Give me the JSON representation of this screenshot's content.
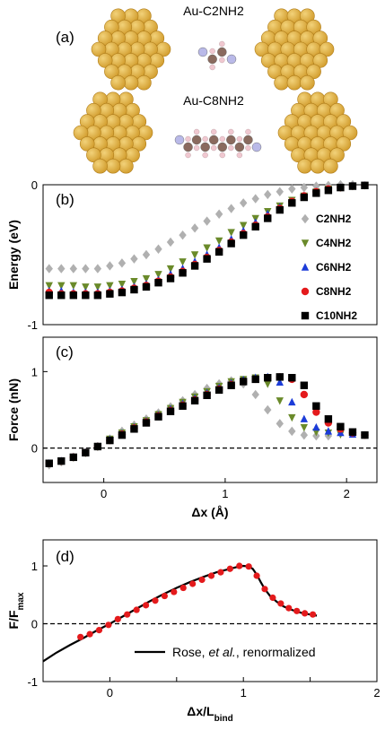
{
  "panel_a": {
    "label": "(a)",
    "molecules": [
      {
        "name": "Au-C2NH2",
        "carbons": 2
      },
      {
        "name": "Au-C8NH2",
        "carbons": 8
      }
    ],
    "colors": {
      "gold": "#d4a032",
      "gold_light": "#f2d27a",
      "carbon": "#8a6a5e",
      "nitrogen": "#b9b9e8",
      "hydrogen": "#f0c8d0",
      "arrow": "#0e8a5a"
    }
  },
  "chart_data": [
    {
      "type": "scatter",
      "panel": "(b)",
      "ylabel": "Energy (eV)",
      "xlim": [
        -0.5,
        2.25
      ],
      "ylim": [
        -1,
        0
      ],
      "yticks": [
        0,
        -1
      ],
      "legend_position": "right",
      "series": [
        {
          "name": "C2NH2",
          "marker": "diamond",
          "color": "#b0b0b0",
          "x": [
            -0.45,
            -0.35,
            -0.25,
            -0.15,
            -0.05,
            0.05,
            0.15,
            0.25,
            0.35,
            0.45,
            0.55,
            0.65,
            0.75,
            0.85,
            0.95,
            1.05,
            1.15,
            1.25,
            1.35,
            1.45,
            1.55,
            1.65,
            1.75,
            1.85,
            1.95,
            2.05
          ],
          "y": [
            -0.6,
            -0.6,
            -0.6,
            -0.6,
            -0.6,
            -0.58,
            -0.56,
            -0.53,
            -0.5,
            -0.46,
            -0.41,
            -0.36,
            -0.31,
            -0.26,
            -0.21,
            -0.17,
            -0.13,
            -0.1,
            -0.07,
            -0.05,
            -0.03,
            -0.02,
            -0.01,
            -0.005,
            0,
            0
          ]
        },
        {
          "name": "C4NH2",
          "marker": "triangle-down",
          "color": "#6a8a2a",
          "x": [
            -0.45,
            -0.35,
            -0.25,
            -0.15,
            -0.05,
            0.05,
            0.15,
            0.25,
            0.35,
            0.45,
            0.55,
            0.65,
            0.75,
            0.85,
            0.95,
            1.05,
            1.15,
            1.25,
            1.35,
            1.45,
            1.55,
            1.65,
            1.75,
            1.85,
            1.95,
            2.05,
            2.15
          ],
          "y": [
            -0.72,
            -0.72,
            -0.72,
            -0.73,
            -0.73,
            -0.72,
            -0.71,
            -0.69,
            -0.67,
            -0.64,
            -0.6,
            -0.55,
            -0.5,
            -0.45,
            -0.4,
            -0.34,
            -0.29,
            -0.24,
            -0.19,
            -0.15,
            -0.11,
            -0.08,
            -0.05,
            -0.03,
            -0.02,
            -0.01,
            -0.005
          ]
        },
        {
          "name": "C6NH2",
          "marker": "triangle-up",
          "color": "#1c3cd8",
          "x": [
            -0.45,
            -0.35,
            -0.25,
            -0.15,
            -0.05,
            0.05,
            0.15,
            0.25,
            0.35,
            0.45,
            0.55,
            0.65,
            0.75,
            0.85,
            0.95,
            1.05,
            1.15,
            1.25,
            1.35,
            1.45,
            1.55,
            1.65,
            1.75,
            1.85,
            1.95,
            2.05,
            2.15
          ],
          "y": [
            -0.76,
            -0.76,
            -0.77,
            -0.77,
            -0.77,
            -0.76,
            -0.75,
            -0.73,
            -0.71,
            -0.68,
            -0.64,
            -0.6,
            -0.55,
            -0.5,
            -0.45,
            -0.39,
            -0.33,
            -0.27,
            -0.21,
            -0.16,
            -0.12,
            -0.08,
            -0.05,
            -0.03,
            -0.02,
            -0.01,
            -0.005
          ]
        },
        {
          "name": "C8NH2",
          "marker": "circle",
          "color": "#e41a1c",
          "x": [
            -0.45,
            -0.35,
            -0.25,
            -0.15,
            -0.05,
            0.05,
            0.15,
            0.25,
            0.35,
            0.45,
            0.55,
            0.65,
            0.75,
            0.85,
            0.95,
            1.05,
            1.15,
            1.25,
            1.35,
            1.45,
            1.55,
            1.65,
            1.75,
            1.85,
            1.95,
            2.05,
            2.15
          ],
          "y": [
            -0.77,
            -0.78,
            -0.78,
            -0.78,
            -0.78,
            -0.77,
            -0.76,
            -0.74,
            -0.72,
            -0.69,
            -0.66,
            -0.62,
            -0.57,
            -0.52,
            -0.47,
            -0.41,
            -0.35,
            -0.29,
            -0.23,
            -0.17,
            -0.12,
            -0.08,
            -0.05,
            -0.03,
            -0.02,
            -0.01,
            -0.005
          ]
        },
        {
          "name": "C10NH2",
          "marker": "square",
          "color": "#000000",
          "x": [
            -0.45,
            -0.35,
            -0.25,
            -0.15,
            -0.05,
            0.05,
            0.15,
            0.25,
            0.35,
            0.45,
            0.55,
            0.65,
            0.75,
            0.85,
            0.95,
            1.05,
            1.15,
            1.25,
            1.35,
            1.45,
            1.55,
            1.65,
            1.75,
            1.85,
            1.95,
            2.05,
            2.15
          ],
          "y": [
            -0.79,
            -0.79,
            -0.79,
            -0.79,
            -0.79,
            -0.78,
            -0.77,
            -0.75,
            -0.73,
            -0.7,
            -0.67,
            -0.63,
            -0.58,
            -0.53,
            -0.48,
            -0.42,
            -0.36,
            -0.3,
            -0.24,
            -0.18,
            -0.13,
            -0.09,
            -0.06,
            -0.04,
            -0.02,
            -0.01,
            -0.005
          ]
        }
      ]
    },
    {
      "type": "scatter",
      "panel": "(c)",
      "ylabel": "Force (nN)",
      "xlabel": "Δx (Å)",
      "xlim": [
        -0.5,
        2.25
      ],
      "ylim": [
        -0.45,
        1.45
      ],
      "xticks": [
        0,
        1,
        2
      ],
      "yticks": [
        0,
        1
      ],
      "reference_line_y": 0,
      "series": [
        {
          "name": "C2NH2",
          "marker": "diamond",
          "color": "#b0b0b0",
          "x": [
            -0.45,
            -0.35,
            -0.25,
            -0.15,
            -0.05,
            0.05,
            0.15,
            0.25,
            0.35,
            0.45,
            0.55,
            0.65,
            0.75,
            0.85,
            0.95,
            1.05,
            1.15,
            1.25,
            1.35,
            1.45,
            1.55,
            1.65,
            1.75,
            1.85
          ],
          "y": [
            -0.22,
            -0.18,
            -0.12,
            -0.06,
            0.02,
            0.12,
            0.22,
            0.3,
            0.38,
            0.46,
            0.54,
            0.62,
            0.7,
            0.78,
            0.84,
            0.88,
            0.84,
            0.7,
            0.5,
            0.32,
            0.22,
            0.17,
            0.16,
            0.16
          ]
        },
        {
          "name": "C4NH2",
          "marker": "triangle-down",
          "color": "#6a8a2a",
          "x": [
            -0.45,
            -0.35,
            -0.25,
            -0.15,
            -0.05,
            0.05,
            0.15,
            0.25,
            0.35,
            0.45,
            0.55,
            0.65,
            0.75,
            0.85,
            0.95,
            1.05,
            1.15,
            1.25,
            1.35,
            1.45,
            1.55,
            1.65,
            1.75,
            1.85,
            1.95
          ],
          "y": [
            -0.2,
            -0.17,
            -0.12,
            -0.06,
            0.02,
            0.12,
            0.2,
            0.28,
            0.36,
            0.44,
            0.52,
            0.6,
            0.67,
            0.74,
            0.81,
            0.87,
            0.9,
            0.92,
            0.84,
            0.62,
            0.4,
            0.27,
            0.21,
            0.2,
            0.18
          ]
        },
        {
          "name": "C6NH2",
          "marker": "triangle-up",
          "color": "#1c3cd8",
          "x": [
            -0.45,
            -0.35,
            -0.25,
            -0.15,
            -0.05,
            0.05,
            0.15,
            0.25,
            0.35,
            0.45,
            0.55,
            0.65,
            0.75,
            0.85,
            0.95,
            1.05,
            1.15,
            1.25,
            1.35,
            1.45,
            1.55,
            1.65,
            1.75,
            1.85,
            1.95,
            2.05
          ],
          "y": [
            -0.2,
            -0.17,
            -0.12,
            -0.06,
            0.02,
            0.11,
            0.19,
            0.27,
            0.35,
            0.43,
            0.51,
            0.58,
            0.65,
            0.72,
            0.79,
            0.85,
            0.89,
            0.92,
            0.93,
            0.86,
            0.6,
            0.38,
            0.27,
            0.22,
            0.2,
            0.18
          ]
        },
        {
          "name": "C8NH2",
          "marker": "circle",
          "color": "#e41a1c",
          "x": [
            -0.45,
            -0.35,
            -0.25,
            -0.15,
            -0.05,
            0.05,
            0.15,
            0.25,
            0.35,
            0.45,
            0.55,
            0.65,
            0.75,
            0.85,
            0.95,
            1.05,
            1.15,
            1.25,
            1.35,
            1.45,
            1.55,
            1.65,
            1.75,
            1.85,
            1.95,
            2.05,
            2.15
          ],
          "y": [
            -0.2,
            -0.17,
            -0.12,
            -0.06,
            0.02,
            0.1,
            0.18,
            0.26,
            0.34,
            0.42,
            0.49,
            0.56,
            0.63,
            0.7,
            0.77,
            0.83,
            0.87,
            0.9,
            0.92,
            0.93,
            0.9,
            0.7,
            0.47,
            0.33,
            0.25,
            0.2,
            0.17
          ]
        },
        {
          "name": "C10NH2",
          "marker": "square",
          "color": "#000000",
          "x": [
            -0.45,
            -0.35,
            -0.25,
            -0.15,
            -0.05,
            0.05,
            0.15,
            0.25,
            0.35,
            0.45,
            0.55,
            0.65,
            0.75,
            0.85,
            0.95,
            1.05,
            1.15,
            1.25,
            1.35,
            1.45,
            1.55,
            1.65,
            1.75,
            1.85,
            1.95,
            2.05,
            2.15
          ],
          "y": [
            -0.2,
            -0.17,
            -0.12,
            -0.06,
            0.02,
            0.1,
            0.17,
            0.25,
            0.33,
            0.41,
            0.48,
            0.55,
            0.62,
            0.69,
            0.76,
            0.82,
            0.87,
            0.9,
            0.92,
            0.93,
            0.92,
            0.82,
            0.55,
            0.38,
            0.28,
            0.21,
            0.17
          ]
        }
      ]
    },
    {
      "type": "line",
      "panel": "(d)",
      "ylabel": "F/F",
      "ylabel_sub": "max",
      "xlabel": "Δx/L",
      "xlabel_sub": "bind",
      "xlim": [
        -0.5,
        2
      ],
      "ylim": [
        -1,
        1.45
      ],
      "xticks": [
        -0.5,
        0,
        0.5,
        1,
        1.5,
        2
      ],
      "xtick_labels": [
        "",
        "0",
        "",
        "1",
        "",
        "2"
      ],
      "yticks": [
        -1,
        0,
        1
      ],
      "reference_line_y": 0,
      "legend_text_a": "Rose, ",
      "legend_text_b": "et al.",
      "legend_text_c": ", renormalized",
      "curve_color": "#000000",
      "curve": {
        "x": [
          -0.5,
          -0.4,
          -0.3,
          -0.2,
          -0.1,
          0,
          0.1,
          0.2,
          0.3,
          0.4,
          0.5,
          0.6,
          0.7,
          0.8,
          0.9,
          0.95,
          1.0,
          1.04,
          1.07,
          1.1,
          1.13,
          1.16,
          1.2,
          1.25,
          1.3,
          1.35,
          1.4,
          1.45,
          1.5,
          1.55
        ],
        "y": [
          -0.65,
          -0.5,
          -0.37,
          -0.25,
          -0.12,
          0,
          0.13,
          0.26,
          0.39,
          0.51,
          0.62,
          0.72,
          0.81,
          0.89,
          0.95,
          0.98,
          1.0,
          0.99,
          0.95,
          0.85,
          0.72,
          0.6,
          0.48,
          0.38,
          0.3,
          0.25,
          0.21,
          0.18,
          0.16,
          0.14
        ]
      },
      "points_color": "#e41a1c",
      "points": {
        "x": [
          -0.22,
          -0.15,
          -0.08,
          -0.01,
          0.06,
          0.13,
          0.2,
          0.27,
          0.34,
          0.41,
          0.48,
          0.55,
          0.62,
          0.69,
          0.76,
          0.83,
          0.9,
          0.97,
          1.04,
          1.1,
          1.16,
          1.22,
          1.28,
          1.34,
          1.4,
          1.46,
          1.52
        ],
        "y": [
          -0.23,
          -0.18,
          -0.11,
          -0.02,
          0.08,
          0.16,
          0.24,
          0.32,
          0.4,
          0.48,
          0.55,
          0.62,
          0.69,
          0.76,
          0.83,
          0.89,
          0.95,
          1.0,
          0.99,
          0.83,
          0.6,
          0.45,
          0.35,
          0.27,
          0.22,
          0.18,
          0.16
        ]
      }
    }
  ]
}
